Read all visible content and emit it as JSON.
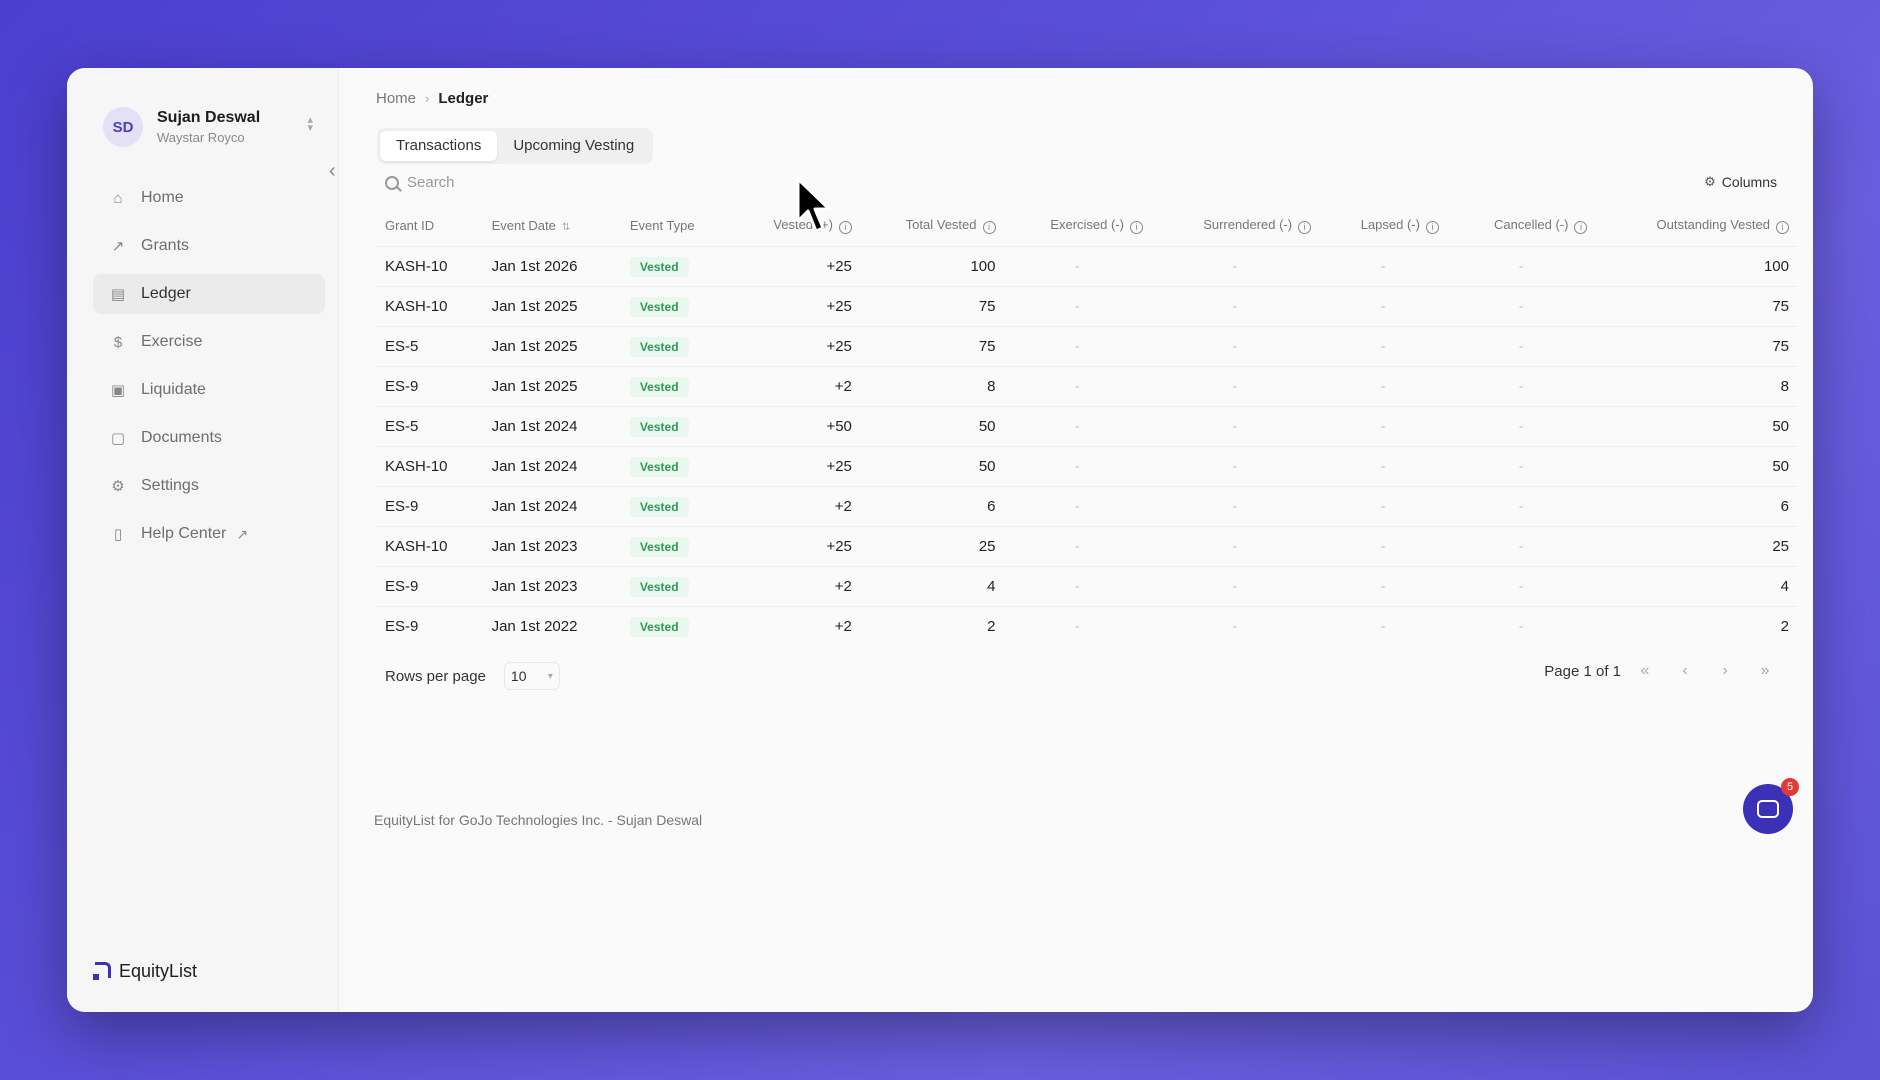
{
  "user": {
    "initials": "SD",
    "name": "Sujan Deswal",
    "org": "Waystar Royco"
  },
  "nav": [
    {
      "label": "Home",
      "icon": "home-icon"
    },
    {
      "label": "Grants",
      "icon": "trend-icon"
    },
    {
      "label": "Ledger",
      "icon": "ledger-icon"
    },
    {
      "label": "Exercise",
      "icon": "dollar-icon"
    },
    {
      "label": "Liquidate",
      "icon": "cash-icon"
    },
    {
      "label": "Documents",
      "icon": "document-icon"
    },
    {
      "label": "Settings",
      "icon": "gear-icon"
    },
    {
      "label": "Help Center",
      "icon": "help-icon"
    }
  ],
  "brand": {
    "name": "EquityList"
  },
  "breadcrumb": {
    "home": "Home",
    "current": "Ledger"
  },
  "tabs": [
    "Transactions",
    "Upcoming Vesting"
  ],
  "search": {
    "placeholder": "Search"
  },
  "columns_label": "Columns",
  "table": {
    "headers": [
      "Grant ID",
      "Event Date",
      "Event Type",
      "Vested (+)",
      "Total Vested",
      "Exercised (-)",
      "Surrendered (-)",
      "Lapsed (-)",
      "Cancelled (-)",
      "Outstanding Vested"
    ],
    "rows": [
      [
        "KASH-10",
        "Jan 1st 2026",
        "Vested",
        "+25",
        "100",
        "-",
        "-",
        "-",
        "-",
        "100"
      ],
      [
        "KASH-10",
        "Jan 1st 2025",
        "Vested",
        "+25",
        "75",
        "-",
        "-",
        "-",
        "-",
        "75"
      ],
      [
        "ES-5",
        "Jan 1st 2025",
        "Vested",
        "+25",
        "75",
        "-",
        "-",
        "-",
        "-",
        "75"
      ],
      [
        "ES-9",
        "Jan 1st 2025",
        "Vested",
        "+2",
        "8",
        "-",
        "-",
        "-",
        "-",
        "8"
      ],
      [
        "ES-5",
        "Jan 1st 2024",
        "Vested",
        "+50",
        "50",
        "-",
        "-",
        "-",
        "-",
        "50"
      ],
      [
        "KASH-10",
        "Jan 1st 2024",
        "Vested",
        "+25",
        "50",
        "-",
        "-",
        "-",
        "-",
        "50"
      ],
      [
        "ES-9",
        "Jan 1st 2024",
        "Vested",
        "+2",
        "6",
        "-",
        "-",
        "-",
        "-",
        "6"
      ],
      [
        "KASH-10",
        "Jan 1st 2023",
        "Vested",
        "+25",
        "25",
        "-",
        "-",
        "-",
        "-",
        "25"
      ],
      [
        "ES-9",
        "Jan 1st 2023",
        "Vested",
        "+2",
        "4",
        "-",
        "-",
        "-",
        "-",
        "4"
      ],
      [
        "ES-9",
        "Jan 1st 2022",
        "Vested",
        "+2",
        "2",
        "-",
        "-",
        "-",
        "-",
        "2"
      ]
    ]
  },
  "pagination": {
    "rows_label": "Rows per page",
    "rows_value": "10",
    "page_label": "Page 1 of 1"
  },
  "footer": "EquityList for GoJo Technologies Inc. - Sujan Deswal",
  "chat": {
    "count": "5"
  },
  "colors": {
    "accent": "#3a31b8",
    "badge_bg": "#eaf7ee",
    "badge_text": "#2f9a56"
  }
}
